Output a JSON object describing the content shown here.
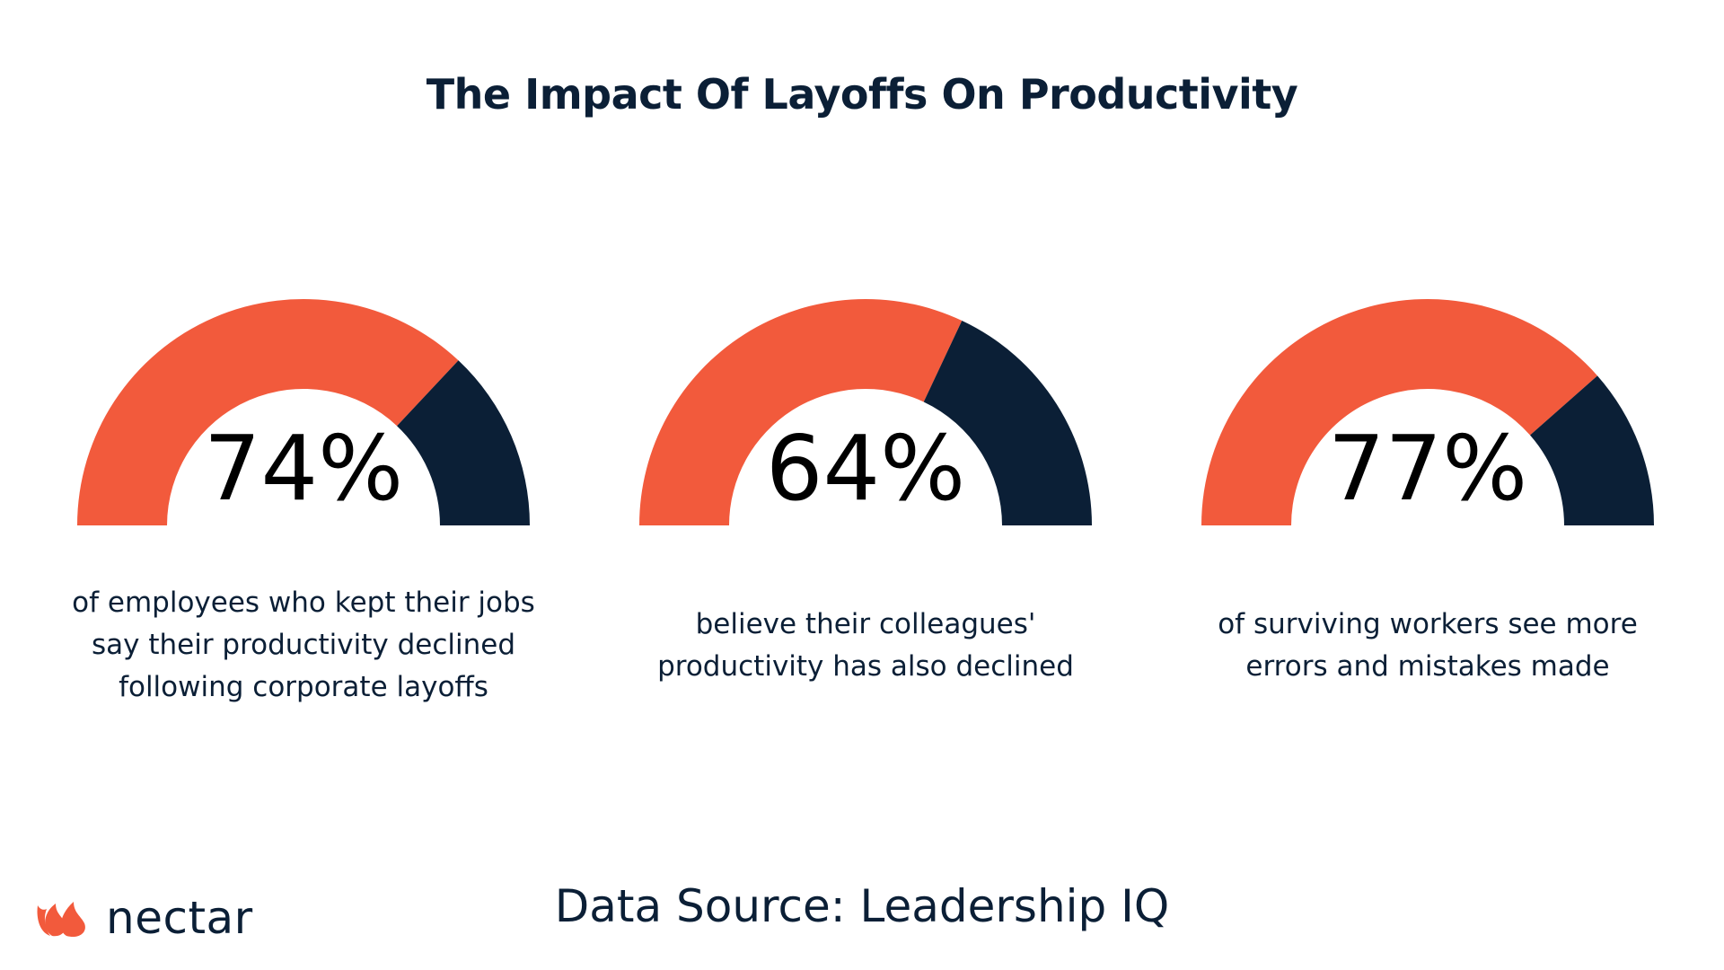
{
  "title": "The Impact Of Layoffs On Productivity",
  "colors": {
    "filled": "#f25a3c",
    "remainder": "#0b1f36",
    "text": "#0b1f36"
  },
  "chart_data": [
    {
      "type": "pie",
      "value": 74,
      "value_label": "74%",
      "caption": [
        "of employees who kept their jobs",
        "say their productivity declined",
        "following corporate layoffs"
      ]
    },
    {
      "type": "pie",
      "value": 64,
      "value_label": "64%",
      "caption": [
        "believe their colleagues'",
        "productivity has also declined"
      ]
    },
    {
      "type": "pie",
      "value": 77,
      "value_label": "77%",
      "caption": [
        "of surviving workers see more",
        "errors and mistakes made"
      ]
    }
  ],
  "source": "Data Source: Leadership IQ",
  "logo": {
    "icon": "nectar-flame-icon",
    "text": "nectar"
  }
}
